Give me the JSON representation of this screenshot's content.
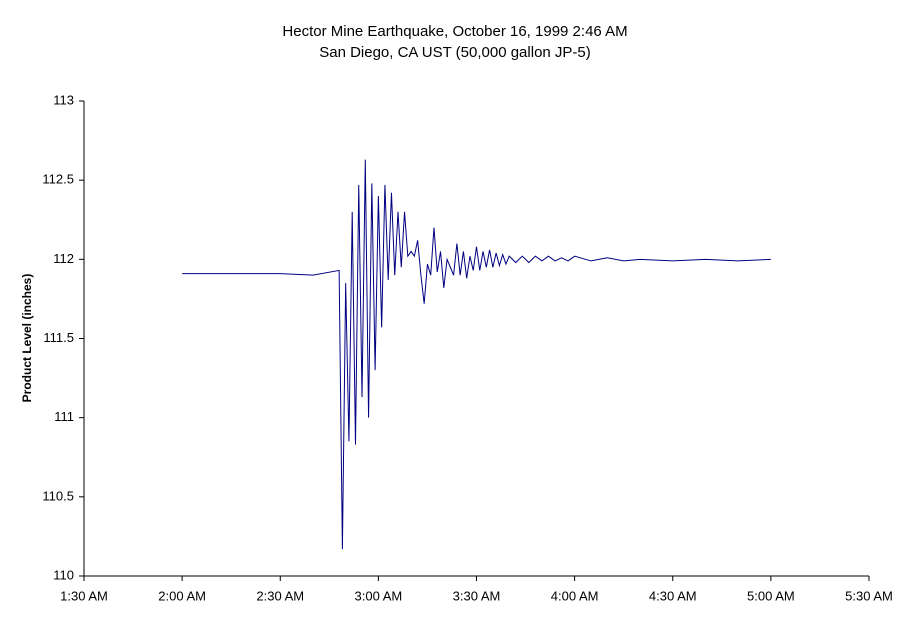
{
  "chart_data": {
    "type": "line",
    "title": "Hector Mine Earthquake, October 16, 1999 2:46 AM",
    "subtitle": "San Diego, CA UST (50,000 gallon JP-5)",
    "y_label": "Product Level (inches)",
    "x": [
      "2:00 AM",
      "2:30 AM",
      "2:40 AM",
      "2:48 AM",
      "2:49 AM",
      "2:50 AM",
      "2:51 AM",
      "2:52 AM",
      "2:53 AM",
      "2:54 AM",
      "2:55 AM",
      "2:56 AM",
      "2:57 AM",
      "2:58 AM",
      "2:59 AM",
      "3:00 AM",
      "3:01 AM",
      "3:02 AM",
      "3:03 AM",
      "3:04 AM",
      "3:05 AM",
      "3:06 AM",
      "3:07 AM",
      "3:08 AM",
      "3:09 AM",
      "3:10 AM",
      "3:11 AM",
      "3:12 AM",
      "3:13 AM",
      "3:14 AM",
      "3:15 AM",
      "3:16 AM",
      "3:17 AM",
      "3:18 AM",
      "3:19 AM",
      "3:20 AM",
      "3:21 AM",
      "3:22 AM",
      "3:23 AM",
      "3:24 AM",
      "3:25 AM",
      "3:26 AM",
      "3:27 AM",
      "3:28 AM",
      "3:29 AM",
      "3:30 AM",
      "3:31 AM",
      "3:32 AM",
      "3:33 AM",
      "3:34 AM",
      "3:35 AM",
      "3:36 AM",
      "3:37 AM",
      "3:38 AM",
      "3:39 AM",
      "3:40 AM",
      "3:42 AM",
      "3:44 AM",
      "3:46 AM",
      "3:48 AM",
      "3:50 AM",
      "3:52 AM",
      "3:54 AM",
      "3:56 AM",
      "3:58 AM",
      "4:00 AM",
      "4:05 AM",
      "4:10 AM",
      "4:15 AM",
      "4:20 AM",
      "4:30 AM",
      "4:40 AM",
      "4:50 AM",
      "5:00 AM"
    ],
    "series": [
      {
        "name": "Product Level",
        "color": "#000080",
        "values": [
          111.91,
          111.91,
          111.9,
          111.93,
          110.17,
          111.85,
          110.85,
          112.3,
          110.83,
          112.47,
          111.13,
          112.63,
          111.0,
          112.48,
          111.3,
          112.4,
          111.57,
          112.47,
          111.87,
          112.42,
          111.9,
          112.3,
          111.95,
          112.3,
          112.02,
          112.05,
          112.02,
          112.12,
          111.9,
          111.72,
          111.97,
          111.9,
          112.2,
          111.92,
          112.05,
          111.82,
          112.0,
          111.95,
          111.9,
          112.1,
          111.9,
          112.05,
          111.88,
          112.02,
          111.93,
          112.08,
          111.93,
          112.05,
          111.95,
          112.06,
          111.95,
          112.04,
          111.96,
          112.03,
          111.97,
          112.02,
          111.98,
          112.02,
          111.98,
          112.02,
          111.99,
          112.02,
          111.99,
          112.01,
          111.99,
          112.02,
          111.99,
          112.01,
          111.99,
          112.0,
          111.99,
          112.0,
          111.99,
          112.0
        ]
      }
    ],
    "xlim": [
      "1:30 AM",
      "5:30 AM"
    ],
    "xticks": [
      "1:30 AM",
      "2:00 AM",
      "2:30 AM",
      "3:00 AM",
      "3:30 AM",
      "4:00 AM",
      "4:30 AM",
      "5:00 AM",
      "5:30 AM"
    ],
    "ylim": [
      110,
      113
    ],
    "yticks": [
      110,
      110.5,
      111,
      111.5,
      112,
      112.5,
      113
    ],
    "grid": false
  }
}
